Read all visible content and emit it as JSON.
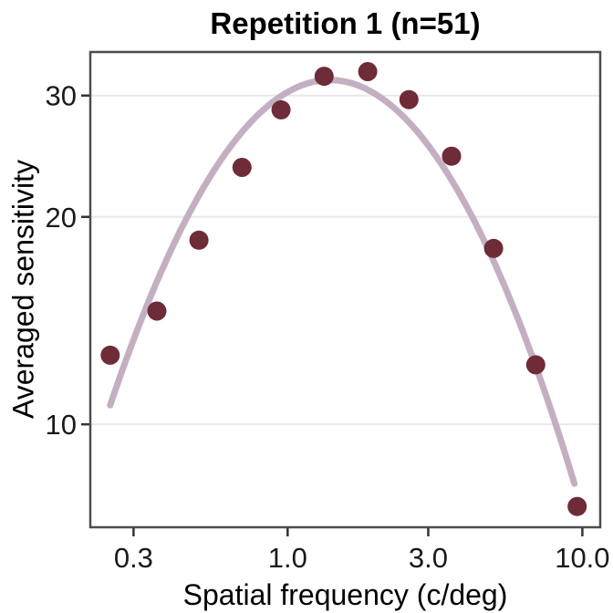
{
  "chart_data": {
    "type": "scatter",
    "title": "Repetition 1 (n=51)",
    "xlabel": "Spatial frequency (c/deg)",
    "ylabel": "Averaged sensitivity",
    "x_scale": "log10",
    "y_scale": "log10",
    "xlim": [
      0.214,
      11.5
    ],
    "ylim": [
      7.09,
      34.7
    ],
    "x_ticks": [
      {
        "value": 0.3,
        "label": "0.3"
      },
      {
        "value": 1.0,
        "label": "1.0"
      },
      {
        "value": 3.0,
        "label": "3.0"
      },
      {
        "value": 10.0,
        "label": "10.0"
      }
    ],
    "y_ticks": [
      {
        "value": 10,
        "label": "10"
      },
      {
        "value": 20,
        "label": "20"
      },
      {
        "value": 30,
        "label": "30"
      }
    ],
    "grid": "horizontal major gridlines only",
    "legend": "none",
    "series": [
      {
        "name": "averaged sensitivity points",
        "type": "scatter",
        "points": [
          {
            "x": 0.25,
            "y": 12.6
          },
          {
            "x": 0.36,
            "y": 14.6
          },
          {
            "x": 0.5,
            "y": 18.5
          },
          {
            "x": 0.7,
            "y": 23.6
          },
          {
            "x": 0.95,
            "y": 28.6
          },
          {
            "x": 1.33,
            "y": 32.0
          },
          {
            "x": 1.87,
            "y": 32.5
          },
          {
            "x": 2.58,
            "y": 29.6
          },
          {
            "x": 3.6,
            "y": 24.5
          },
          {
            "x": 5.0,
            "y": 18.0
          },
          {
            "x": 6.95,
            "y": 12.2
          },
          {
            "x": 9.6,
            "y": 7.6
          }
        ]
      },
      {
        "name": "fitted contrast sensitivity curve",
        "type": "line",
        "model": "log-parabola",
        "peak_x": 1.39,
        "peak_y": 31.6,
        "log_curvature": 0.85,
        "x_min": 0.25,
        "x_max": 9.4
      }
    ],
    "colors": {
      "point": "#6E2B38",
      "curve": "#C4AFC2",
      "gridline": "#E8E8E8",
      "panel_border": "#4D4D4D",
      "tick_mark": "#333333",
      "tick_label": "#1A1A1A",
      "text": "#000000",
      "background": "#FFFFFF"
    }
  }
}
